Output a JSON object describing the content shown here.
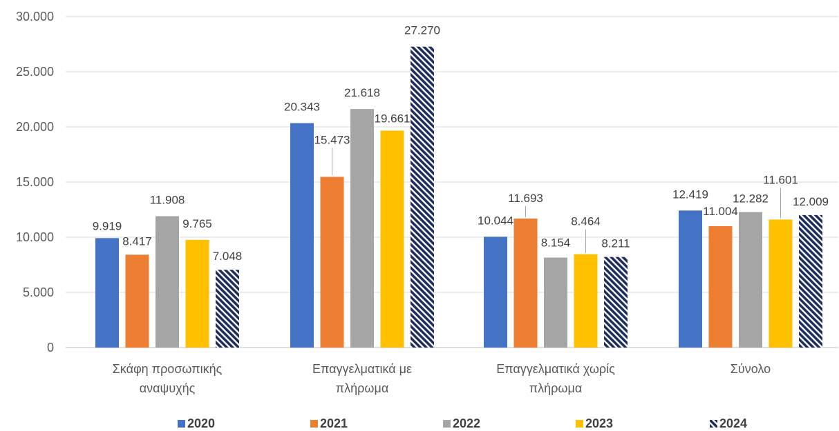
{
  "chart_data": {
    "type": "bar",
    "categories": [
      [
        "Σκάφη προσωπικής",
        "αναψυχής"
      ],
      [
        "Επαγγελματικά  με",
        "πλήρωμα"
      ],
      [
        "Επαγγελματικά χωρίς",
        "πλήρωμα"
      ],
      [
        "Σύνολο"
      ]
    ],
    "series": [
      {
        "name": "2020",
        "values": [
          9919,
          20343,
          10044,
          12419
        ],
        "labels": [
          "9.919",
          "20.343",
          "10.044",
          "12.419"
        ],
        "color": "#4472C4",
        "pattern": "solid"
      },
      {
        "name": "2021",
        "values": [
          8417,
          15473,
          11693,
          11004
        ],
        "labels": [
          "8.417",
          "15.473",
          "11.693",
          "11.004"
        ],
        "color": "#ED7D31",
        "pattern": "solid"
      },
      {
        "name": "2022",
        "values": [
          11908,
          21618,
          8154,
          12282
        ],
        "labels": [
          "11.908",
          "21.618",
          "8.154",
          "12.282"
        ],
        "color": "#A5A5A5",
        "pattern": "solid"
      },
      {
        "name": "2023",
        "values": [
          9765,
          19661,
          8464,
          11601
        ],
        "labels": [
          "9.765",
          "19.661",
          "8.464",
          "11.601"
        ],
        "color": "#FFC000",
        "pattern": "solid"
      },
      {
        "name": "2024",
        "values": [
          7048,
          27270,
          8211,
          12009
        ],
        "labels": [
          "7.048",
          "27.270",
          "8.211",
          "12.009"
        ],
        "color": "#1F2D5C",
        "pattern": "diagonal-stripes"
      }
    ],
    "yticks": [
      "0",
      "5.000",
      "10.000",
      "15.000",
      "20.000",
      "25.000",
      "30.000"
    ],
    "ylim": [
      0,
      30000
    ],
    "grid": true,
    "legend_position": "bottom",
    "title": "",
    "xlabel": "",
    "ylabel": ""
  }
}
